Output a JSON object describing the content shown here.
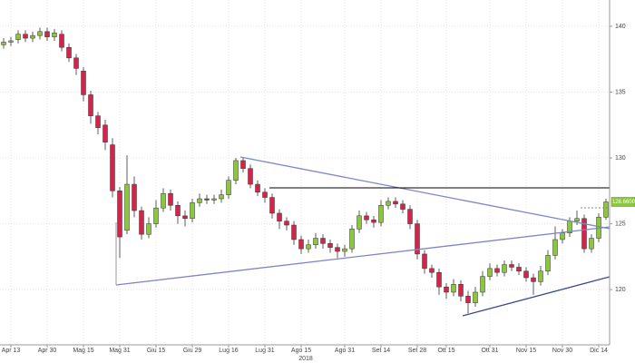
{
  "chart_data": {
    "type": "candlestick",
    "categories": [
      null,
      "Apr 13",
      null,
      null,
      null,
      null,
      "Apr 30",
      null,
      null,
      null,
      null,
      "Mag 15",
      null,
      null,
      null,
      null,
      "Mag 31",
      null,
      null,
      null,
      null,
      "Giu 15",
      null,
      null,
      null,
      null,
      "Giu 29",
      null,
      null,
      null,
      null,
      "Lug 16",
      null,
      null,
      null,
      null,
      "Lug 31",
      null,
      null,
      null,
      null,
      "Ago 15",
      null,
      null,
      null,
      null,
      null,
      "Ago 31",
      null,
      null,
      null,
      null,
      "Set 14",
      null,
      null,
      null,
      null,
      "Set 28",
      null,
      null,
      null,
      "Ott 15",
      null,
      null,
      null,
      null,
      null,
      "Ott 31",
      null,
      null,
      null,
      null,
      "Nov 15",
      null,
      null,
      null,
      null,
      "Nov 30",
      null,
      null,
      null,
      null,
      "Dic 14",
      null
    ],
    "x_sublabel": "2018",
    "open": [
      138.6,
      138.8,
      139.0,
      139.4,
      139.1,
      139.3,
      139.6,
      139.2,
      139.4,
      138.4,
      137.6,
      136.6,
      134.8,
      133.2,
      132.5,
      131.0,
      127.5,
      124.5,
      128.0,
      126.0,
      124.2,
      125.0,
      126.2,
      127.3,
      126.4,
      125.6,
      125.4,
      126.6,
      126.9,
      126.8,
      126.9,
      127.2,
      128.3,
      129.8,
      129.2,
      128.0,
      127.4,
      127.0,
      125.8,
      125.2,
      124.9,
      123.8,
      123.1,
      123.4,
      123.9,
      123.5,
      123.2,
      122.9,
      123.1,
      124.6,
      125.6,
      125.3,
      125.1,
      126.4,
      126.7,
      126.5,
      126.1,
      125.0,
      122.7,
      121.6,
      121.3,
      120.2,
      119.8,
      120.4,
      119.5,
      119.0,
      119.8,
      121.0,
      121.6,
      121.3,
      121.9,
      121.7,
      121.4,
      120.9,
      120.6,
      121.4,
      122.6,
      123.8,
      124.3,
      125.2,
      125.4,
      123.1,
      123.9,
      125.5
    ],
    "high": [
      139.1,
      139.2,
      139.7,
      139.7,
      139.6,
      139.9,
      139.9,
      139.8,
      139.7,
      138.7,
      137.9,
      136.9,
      135.1,
      133.5,
      132.9,
      131.5,
      127.8,
      130.2,
      128.6,
      126.3,
      125.5,
      126.8,
      127.7,
      127.6,
      126.7,
      126.0,
      126.9,
      127.3,
      127.2,
      127.2,
      127.6,
      128.6,
      130.0,
      130.0,
      129.5,
      128.3,
      127.7,
      127.3,
      126.1,
      125.5,
      125.2,
      124.1,
      123.8,
      124.3,
      124.2,
      123.8,
      123.5,
      123.4,
      124.9,
      126.0,
      125.9,
      125.6,
      126.8,
      127.0,
      127.0,
      126.8,
      126.4,
      125.3,
      123.0,
      121.9,
      121.6,
      120.5,
      120.8,
      120.7,
      119.9,
      120.2,
      121.4,
      122.0,
      121.9,
      122.2,
      122.2,
      122.0,
      121.7,
      121.2,
      121.8,
      123.0,
      124.8,
      124.6,
      125.5,
      126.0,
      125.7,
      124.2,
      125.8,
      126.9
    ],
    "low": [
      138.3,
      138.5,
      138.7,
      138.8,
      138.8,
      139.0,
      138.9,
      138.9,
      138.1,
      137.3,
      136.3,
      134.3,
      132.6,
      131.8,
      130.6,
      127.0,
      122.4,
      124.2,
      125.5,
      123.8,
      123.9,
      124.7,
      125.9,
      126.0,
      125.0,
      124.8,
      125.1,
      126.3,
      126.5,
      126.5,
      126.6,
      126.9,
      128.0,
      128.9,
      127.7,
      127.1,
      126.6,
      125.4,
      124.6,
      124.5,
      123.4,
      122.7,
      122.8,
      123.1,
      123.1,
      122.8,
      122.4,
      122.5,
      122.8,
      124.3,
      125.0,
      124.7,
      124.8,
      126.1,
      126.2,
      125.8,
      124.6,
      122.3,
      121.2,
      120.9,
      119.6,
      119.3,
      119.5,
      119.1,
      118.2,
      118.7,
      119.5,
      120.7,
      121.0,
      121.0,
      121.4,
      121.1,
      120.6,
      119.6,
      120.3,
      121.1,
      122.3,
      123.5,
      124.0,
      124.9,
      122.8,
      122.8,
      123.6,
      125.3
    ],
    "close": [
      138.8,
      138.9,
      139.4,
      139.1,
      139.3,
      139.6,
      139.2,
      139.5,
      138.4,
      137.6,
      136.8,
      134.8,
      133.2,
      132.3,
      131.2,
      127.5,
      124.0,
      128.0,
      126.0,
      124.2,
      125.0,
      126.2,
      127.3,
      126.4,
      125.6,
      125.4,
      126.6,
      126.9,
      126.8,
      126.9,
      127.2,
      128.3,
      129.8,
      129.2,
      128.0,
      127.4,
      127.0,
      125.8,
      125.2,
      124.9,
      123.8,
      123.1,
      123.4,
      123.9,
      123.5,
      123.2,
      122.9,
      123.1,
      124.6,
      125.6,
      125.3,
      125.1,
      126.4,
      126.7,
      126.5,
      126.1,
      125.0,
      122.7,
      121.6,
      121.3,
      120.2,
      119.8,
      120.4,
      119.5,
      119.0,
      119.8,
      121.0,
      121.6,
      121.3,
      121.9,
      121.7,
      121.4,
      120.9,
      120.6,
      121.4,
      122.6,
      123.8,
      124.3,
      125.2,
      125.4,
      123.1,
      123.9,
      125.5,
      126.66
    ],
    "up_color": "#8cc63f",
    "down_color": "#d6234a",
    "last_price": {
      "value": 126.66,
      "label": "126.6600"
    },
    "ylim": [
      115.8,
      142
    ],
    "yticks": [
      120,
      125,
      130,
      135,
      140
    ],
    "grid": true
  }
}
